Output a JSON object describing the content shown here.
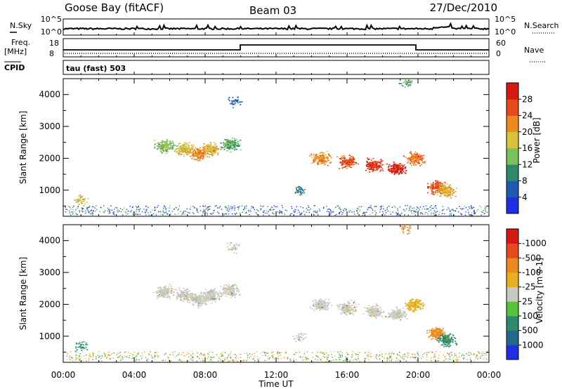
{
  "header": {
    "station": "Goose Bay (fitACF)",
    "beam": "Beam 03",
    "date": "27/Dec/2010"
  },
  "strip_labels": {
    "nsky": "N.Sky",
    "nsearch": "N.Search",
    "freq": "Freq.",
    "freq_unit": "[MHz]",
    "nave": "Nave",
    "cpid": "CPID",
    "mode": "tau (fast) 503"
  },
  "noise_axis_ticks": [
    "10^5",
    "10^0"
  ],
  "freq_axis_ticks": [
    "18",
    "8"
  ],
  "nave_axis_ticks": [
    "60",
    "0"
  ],
  "chart_data": [
    {
      "type": "heatmap",
      "title": "",
      "xlabel": "Time UT",
      "ylabel": "Slant Range [km]",
      "xlim": [
        0,
        24
      ],
      "ylim": [
        180,
        4500
      ],
      "x_ticks": [
        "00:00",
        "04:00",
        "08:00",
        "12:00",
        "16:00",
        "20:00",
        "00:00"
      ],
      "y_ticks": [
        1000,
        2000,
        3000,
        4000
      ],
      "colorbar_label": "Power [dB]",
      "colorbar_ticks": [
        4,
        8,
        12,
        16,
        20,
        24,
        28
      ],
      "colorbar_colors": [
        "#1e2ee0",
        "#1f58b0",
        "#2e8a6c",
        "#7bc05a",
        "#d8c33a",
        "#ec8a1f",
        "#e74a1a",
        "#d41a12"
      ],
      "series": [
        {
          "name": "",
          "x": [
            5.7,
            6.8,
            7.6,
            8.3,
            9.4
          ],
          "y": [
            2400,
            2300,
            2150,
            2300,
            2450
          ],
          "values": [
            14,
            18,
            22,
            20,
            12
          ]
        },
        {
          "name": "",
          "x": [
            14.5,
            16.0,
            17.5,
            18.8,
            19.8,
            21.0,
            21.6
          ],
          "y": [
            2000,
            1900,
            1800,
            1700,
            2000,
            1100,
            1000
          ],
          "values": [
            22,
            26,
            28,
            30,
            24,
            26,
            20
          ]
        },
        {
          "name": "",
          "x": [
            1.0,
            9.6,
            13.3,
            19.3
          ],
          "y": [
            700,
            3800,
            1000,
            4400
          ],
          "values": [
            18,
            6,
            8,
            12
          ]
        }
      ]
    },
    {
      "type": "heatmap",
      "title": "",
      "xlabel": "Time UT",
      "ylabel": "Slant Range [km]",
      "xlim": [
        0,
        24
      ],
      "ylim": [
        180,
        4500
      ],
      "x_ticks": [
        "00:00",
        "04:00",
        "08:00",
        "12:00",
        "16:00",
        "20:00",
        "00:00"
      ],
      "y_ticks": [
        1000,
        2000,
        3000,
        4000
      ],
      "colorbar_label": "Velocity [m s-1]",
      "colorbar_ticks": [
        "1000",
        "500",
        "100",
        "25",
        "-25",
        "-100",
        "-500",
        "-1000"
      ],
      "colorbar_colors": [
        "#1e2ee0",
        "#1f6a8a",
        "#2e8a6c",
        "#56c33a",
        "#c8c8c4",
        "#e8b01f",
        "#ec8a1f",
        "#e74a1a",
        "#d41a12"
      ],
      "series": [
        {
          "name": "",
          "x": [
            5.7,
            6.8,
            7.6,
            8.3,
            9.4
          ],
          "y": [
            2400,
            2300,
            2150,
            2300,
            2450
          ],
          "values": [
            0,
            0,
            0,
            0,
            0
          ]
        },
        {
          "name": "",
          "x": [
            14.5,
            16.0,
            17.5,
            18.8,
            19.8,
            21.0,
            21.6
          ],
          "y": [
            2000,
            1900,
            1800,
            1700,
            2000,
            1100,
            900
          ],
          "values": [
            0,
            0,
            0,
            0,
            -60,
            -150,
            120
          ]
        },
        {
          "name": "",
          "x": [
            1.0,
            9.6,
            13.3,
            19.3
          ],
          "y": [
            700,
            3800,
            1000,
            4400
          ],
          "values": [
            150,
            0,
            0,
            -300
          ]
        }
      ]
    }
  ]
}
